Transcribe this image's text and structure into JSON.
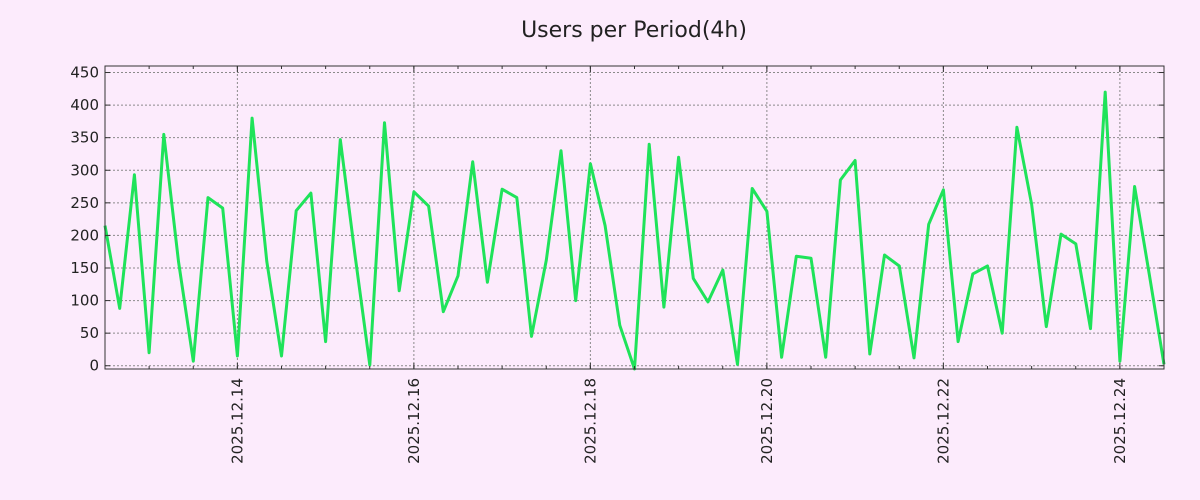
{
  "chart_data": {
    "type": "line",
    "title": "Users per Period(4h)",
    "xlabel": "",
    "ylabel": "",
    "x_range": [
      "2025-12-12T12:00",
      "2025-12-24T12:00"
    ],
    "x_ticks": [
      "2025.12.14",
      "2025.12.16",
      "2025.12.18",
      "2025.12.20",
      "2025.12.22",
      "2025.12.24"
    ],
    "ylim": [
      -5,
      460
    ],
    "y_ticks": [
      0,
      50,
      100,
      150,
      200,
      250,
      300,
      350,
      400,
      450
    ],
    "grid": true,
    "series": [
      {
        "color": "#1fe35a",
        "points": [
          [
            "2025-12-12T12:00",
            215
          ],
          [
            "2025-12-12T16:00",
            88
          ],
          [
            "2025-12-12T20:00",
            293
          ],
          [
            "2025-12-13T00:00",
            20
          ],
          [
            "2025-12-13T04:00",
            355
          ],
          [
            "2025-12-13T08:00",
            160
          ],
          [
            "2025-12-13T12:00",
            7
          ],
          [
            "2025-12-13T16:00",
            258
          ],
          [
            "2025-12-13T20:00",
            242
          ],
          [
            "2025-12-14T00:00",
            15
          ],
          [
            "2025-12-14T04:00",
            380
          ],
          [
            "2025-12-14T08:00",
            160
          ],
          [
            "2025-12-14T12:00",
            15
          ],
          [
            "2025-12-14T16:00",
            238
          ],
          [
            "2025-12-14T20:00",
            265
          ],
          [
            "2025-12-15T00:00",
            37
          ],
          [
            "2025-12-15T04:00",
            347
          ],
          [
            "2025-12-15T08:00",
            170
          ],
          [
            "2025-12-15T12:00",
            1
          ],
          [
            "2025-12-15T16:00",
            373
          ],
          [
            "2025-12-15T20:00",
            115
          ],
          [
            "2025-12-16T00:00",
            267
          ],
          [
            "2025-12-16T04:00",
            245
          ],
          [
            "2025-12-16T08:00",
            83
          ],
          [
            "2025-12-16T12:00",
            138
          ],
          [
            "2025-12-16T16:00",
            313
          ],
          [
            "2025-12-16T20:00",
            128
          ],
          [
            "2025-12-17T00:00",
            271
          ],
          [
            "2025-12-17T04:00",
            258
          ],
          [
            "2025-12-17T08:00",
            45
          ],
          [
            "2025-12-17T12:00",
            162
          ],
          [
            "2025-12-17T16:00",
            330
          ],
          [
            "2025-12-17T20:00",
            100
          ],
          [
            "2025-12-18T00:00",
            310
          ],
          [
            "2025-12-18T04:00",
            215
          ],
          [
            "2025-12-18T08:00",
            62
          ],
          [
            "2025-12-18T12:00",
            -5
          ],
          [
            "2025-12-18T16:00",
            340
          ],
          [
            "2025-12-18T20:00",
            90
          ],
          [
            "2025-12-19T00:00",
            320
          ],
          [
            "2025-12-19T04:00",
            134
          ],
          [
            "2025-12-19T08:00",
            98
          ],
          [
            "2025-12-19T12:00",
            147
          ],
          [
            "2025-12-19T16:00",
            2
          ],
          [
            "2025-12-19T20:00",
            272
          ],
          [
            "2025-12-20T00:00",
            237
          ],
          [
            "2025-12-20T04:00",
            13
          ],
          [
            "2025-12-20T08:00",
            168
          ],
          [
            "2025-12-20T12:00",
            165
          ],
          [
            "2025-12-20T16:00",
            13
          ],
          [
            "2025-12-20T20:00",
            285
          ],
          [
            "2025-12-21T00:00",
            315
          ],
          [
            "2025-12-21T04:00",
            18
          ],
          [
            "2025-12-21T08:00",
            170
          ],
          [
            "2025-12-21T12:00",
            153
          ],
          [
            "2025-12-21T16:00",
            12
          ],
          [
            "2025-12-21T20:00",
            217
          ],
          [
            "2025-12-22T00:00",
            270
          ],
          [
            "2025-12-22T04:00",
            37
          ],
          [
            "2025-12-22T08:00",
            141
          ],
          [
            "2025-12-22T12:00",
            153
          ],
          [
            "2025-12-22T16:00",
            50
          ],
          [
            "2025-12-22T20:00",
            366
          ],
          [
            "2025-12-23T00:00",
            248
          ],
          [
            "2025-12-23T04:00",
            60
          ],
          [
            "2025-12-23T08:00",
            202
          ],
          [
            "2025-12-23T12:00",
            187
          ],
          [
            "2025-12-23T16:00",
            57
          ],
          [
            "2025-12-23T20:00",
            420
          ],
          [
            "2025-12-24T00:00",
            7
          ],
          [
            "2025-12-24T04:00",
            275
          ],
          [
            "2025-12-24T08:00",
            140
          ],
          [
            "2025-12-24T12:00",
            2
          ]
        ]
      }
    ]
  }
}
